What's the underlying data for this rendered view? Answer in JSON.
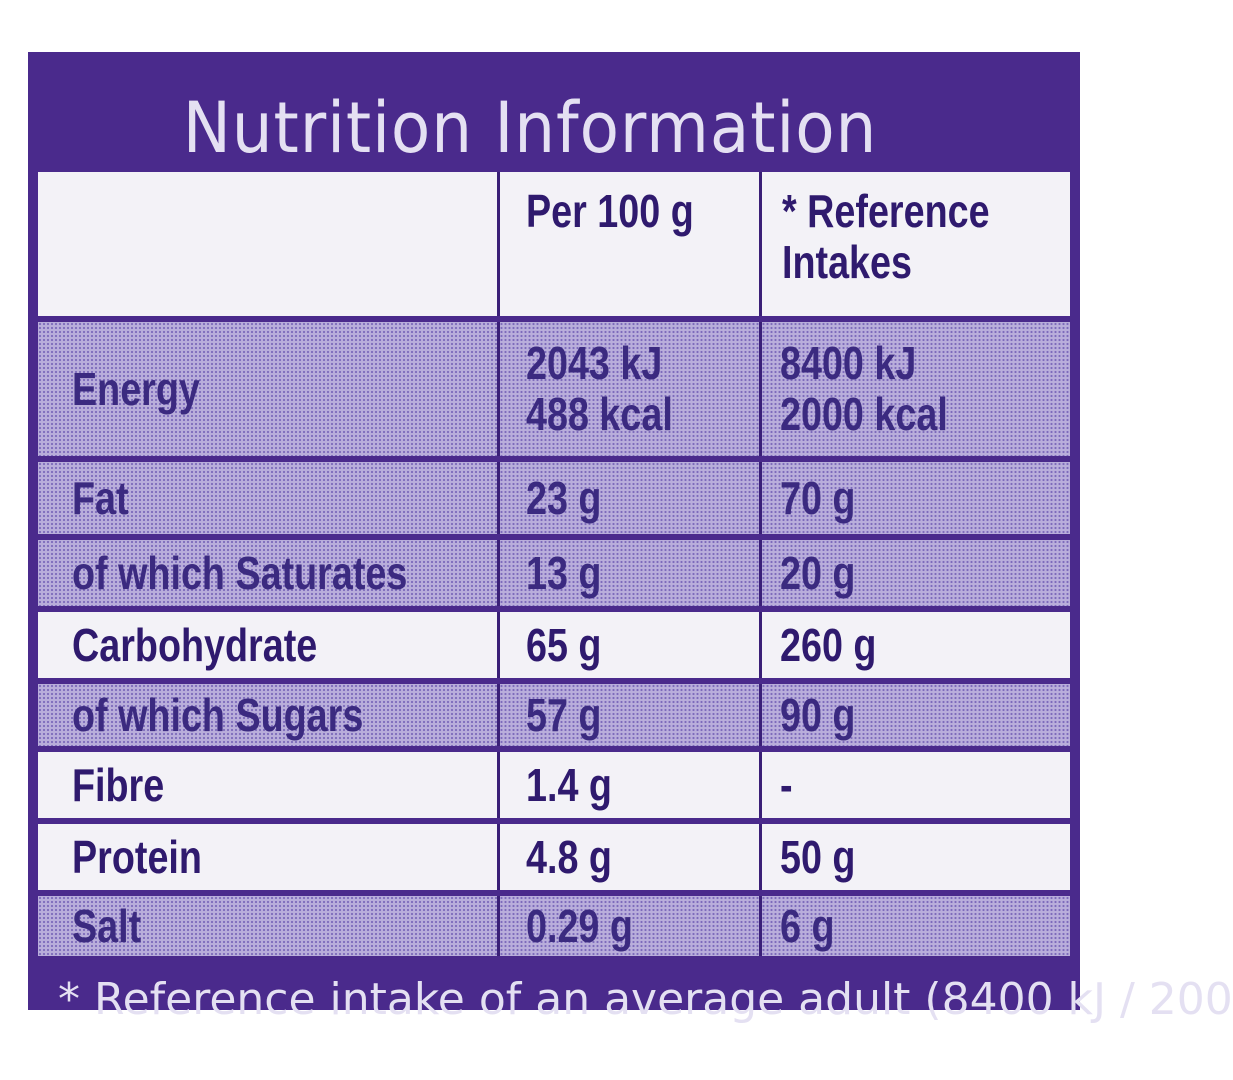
{
  "title": "Nutrition Information",
  "headers": {
    "blank": "",
    "per100": "Per 100 g",
    "ref_line1": "* Reference",
    "ref_line2": "Intakes"
  },
  "rows": [
    {
      "label": "Energy",
      "per100_line1": "2043 kJ",
      "per100_line2": "488 kcal",
      "ref_line1": "8400 kJ",
      "ref_line2": "2000 kcal"
    },
    {
      "label": "Fat",
      "per100": "23 g",
      "ref": "70 g"
    },
    {
      "label": "of which Saturates",
      "per100": "13 g",
      "ref": "20 g"
    },
    {
      "label": "Carbohydrate",
      "per100": "65 g",
      "ref": "260 g"
    },
    {
      "label": "of which Sugars",
      "per100": "57 g",
      "ref": "90 g"
    },
    {
      "label": "Fibre",
      "per100": "1.4 g",
      "ref": "-"
    },
    {
      "label": "Protein",
      "per100": "4.8 g",
      "ref": "50 g"
    },
    {
      "label": "Salt",
      "per100": "0.29 g",
      "ref": "6 g"
    }
  ],
  "footnote": "* Reference intake of an average adult (8400 kJ / 200",
  "colors": {
    "panel": "#4a2a8c",
    "text_dark": "#2f1a6e",
    "light_cell": "#f3f2f7",
    "shaded_cell": "#b9aedb"
  }
}
